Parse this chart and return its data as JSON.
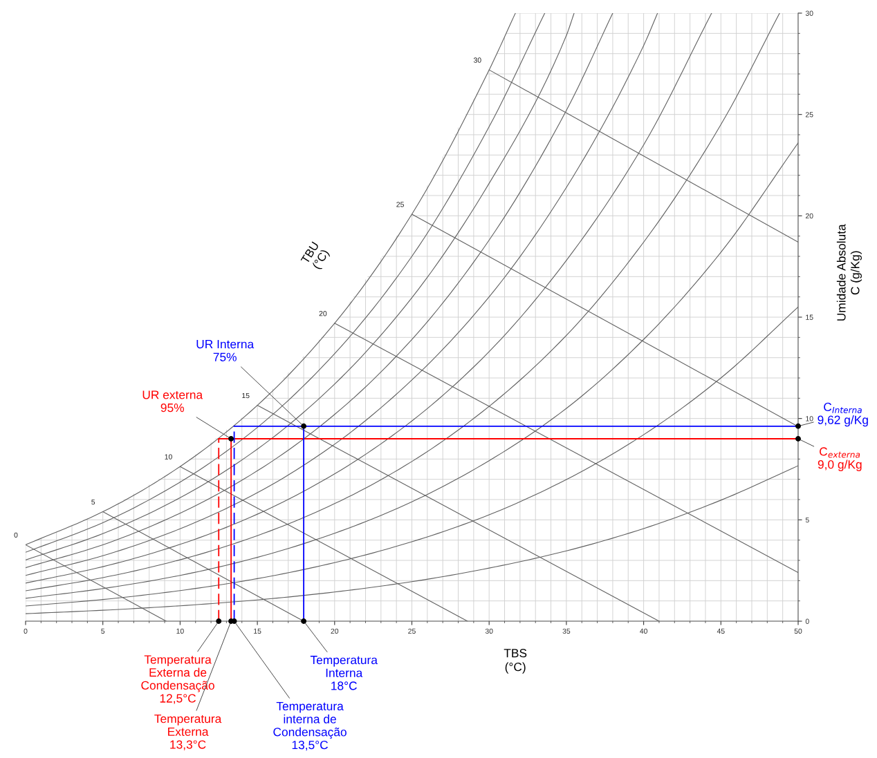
{
  "chart_data": {
    "type": "line",
    "xlabel": "TBS\n(°C)",
    "ylabel": "Umidade Absoluta\nC (g/Kg)",
    "xlim": [
      0,
      50
    ],
    "ylim": [
      0,
      30
    ],
    "xticks": [
      0,
      5,
      10,
      15,
      20,
      25,
      30,
      35,
      40,
      45,
      50
    ],
    "yticks": [
      0,
      5,
      10,
      15,
      20,
      25,
      30
    ],
    "grid": true,
    "series": [
      {
        "color": "#606060",
        "x": [
          0,
          5,
          10,
          15,
          20,
          25,
          30,
          31.7
        ],
        "values": [
          3.77,
          5.4,
          7.63,
          10.65,
          14.7,
          20.08,
          27.2,
          30
        ]
      },
      {
        "color": "#606060",
        "x": [
          0,
          5,
          10,
          15,
          20,
          25,
          30,
          33.6
        ],
        "values": [
          3.4,
          4.86,
          6.86,
          9.56,
          13.2,
          18.0,
          24.4,
          30
        ]
      },
      {
        "color": "#606060",
        "x": [
          0,
          5,
          10,
          15,
          20,
          25,
          30,
          35,
          35.5
        ],
        "values": [
          3.02,
          4.32,
          6.09,
          8.49,
          11.7,
          15.96,
          21.6,
          28.9,
          30
        ]
      },
      {
        "color": "#606060",
        "x": [
          0,
          5,
          10,
          15,
          20,
          25,
          30,
          35,
          38.0
        ],
        "values": [
          2.64,
          3.77,
          5.33,
          7.42,
          10.2,
          13.9,
          18.8,
          25.2,
          30
        ]
      },
      {
        "color": "#606060",
        "x": [
          0,
          5,
          10,
          15,
          20,
          25,
          30,
          35,
          40,
          40.9
        ],
        "values": [
          2.26,
          3.23,
          4.56,
          6.34,
          8.73,
          11.9,
          16.0,
          21.4,
          28.4,
          30
        ]
      },
      {
        "color": "#606060",
        "x": [
          0,
          5,
          10,
          15,
          20,
          25,
          30,
          35,
          40,
          44.4
        ],
        "values": [
          1.88,
          2.69,
          3.79,
          5.28,
          7.27,
          9.88,
          13.3,
          17.8,
          23.5,
          30
        ]
      },
      {
        "color": "#606060",
        "x": [
          0,
          5,
          10,
          15,
          20,
          25,
          30,
          35,
          40,
          45,
          48.8
        ],
        "values": [
          1.5,
          2.15,
          3.03,
          4.22,
          5.8,
          7.88,
          10.6,
          14.1,
          18.7,
          24.5,
          30
        ]
      },
      {
        "color": "#606060",
        "x": [
          0,
          5,
          10,
          15,
          20,
          25,
          30,
          35,
          40,
          45,
          50
        ],
        "values": [
          1.13,
          1.61,
          2.26,
          3.15,
          4.34,
          5.89,
          7.92,
          10.5,
          13.9,
          18.2,
          23.6
        ]
      },
      {
        "color": "#606060",
        "x": [
          0,
          5,
          10,
          15,
          20,
          25,
          30,
          35,
          40,
          45,
          50
        ],
        "values": [
          0.75,
          1.07,
          1.51,
          2.1,
          2.89,
          3.92,
          5.25,
          6.99,
          9.2,
          12.0,
          15.5
        ]
      },
      {
        "color": "#606060",
        "x": [
          0,
          5,
          10,
          15,
          20,
          25,
          30,
          35,
          40,
          45,
          50
        ],
        "values": [
          0.37,
          0.54,
          0.76,
          1.05,
          1.44,
          1.95,
          2.62,
          3.47,
          4.57,
          5.97,
          7.67
        ]
      },
      {
        "name": "0",
        "color": "#606060",
        "x": [
          0,
          9.1
        ],
        "values": [
          3.77,
          0
        ]
      },
      {
        "name": "5",
        "color": "#606060",
        "x": [
          5,
          18.0
        ],
        "values": [
          5.4,
          0
        ]
      },
      {
        "name": "10",
        "color": "#606060",
        "x": [
          10,
          28.6
        ],
        "values": [
          7.63,
          0
        ]
      },
      {
        "name": "15",
        "color": "#606060",
        "x": [
          15,
          41.0
        ],
        "values": [
          10.65,
          0
        ]
      },
      {
        "name": "20",
        "color": "#606060",
        "x": [
          20,
          50
        ],
        "values": [
          14.7,
          2.4
        ]
      },
      {
        "name": "25",
        "color": "#606060",
        "x": [
          25,
          50
        ],
        "values": [
          20.08,
          9.6
        ]
      },
      {
        "name": "30",
        "color": "#606060",
        "x": [
          30,
          50
        ],
        "values": [
          27.2,
          18.7
        ]
      },
      {
        "color": "#ff0000",
        "x": [
          12.5,
          50
        ],
        "values": [
          9.0,
          9.0
        ]
      },
      {
        "color": "#ff0000",
        "x": [
          13.3,
          13.3
        ],
        "values": [
          0,
          9.0
        ]
      },
      {
        "color": "#ff0000",
        "line_style": "dashed",
        "x": [
          12.5,
          12.5
        ],
        "values": [
          0,
          9.0
        ]
      },
      {
        "color": "#0000ff",
        "x": [
          13.5,
          50
        ],
        "values": [
          9.62,
          9.62
        ]
      },
      {
        "color": "#0000ff",
        "x": [
          18,
          18
        ],
        "values": [
          0,
          9.62
        ]
      },
      {
        "color": "#0000ff",
        "line_style": "dashed",
        "x": [
          13.5,
          13.5
        ],
        "values": [
          0,
          9.62
        ]
      },
      {
        "type": "scatter",
        "marker": "circle",
        "color": "#000000",
        "x": [
          12.5,
          13.3,
          13.5,
          18,
          13.3,
          18,
          50,
          50
        ],
        "values": [
          0,
          0,
          0,
          0,
          9.0,
          9.62,
          9.62,
          9.0
        ]
      }
    ],
    "annotations": [
      "TBU\n(°C)",
      {
        "text": "UR Interna\n75%",
        "x": 18,
        "y": 9.62
      },
      {
        "text": "UR externa\n95%",
        "x": 13.3,
        "y": 9.0
      },
      {
        "text": "C$_{Interna}$\n9,62 g/Kg",
        "x": 50,
        "y": 9.62
      },
      {
        "text": "C$_{externa}$\n9,0 g/Kg",
        "x": 50,
        "y": 9.0
      },
      {
        "text": "Temperatura\nExterna de\nCondensação\n12,5°C",
        "x": 12.5,
        "y": 0
      },
      {
        "text": "Temperatura\nExterna\n13,3°C",
        "x": 13.3,
        "y": 0
      },
      {
        "text": "Temperatura\ninterna de\nCondensação\n13,5°C",
        "x": 13.5,
        "y": 0
      },
      {
        "text": "Temperatura\nInterna\n18°C",
        "x": 18,
        "y": 0
      }
    ]
  }
}
